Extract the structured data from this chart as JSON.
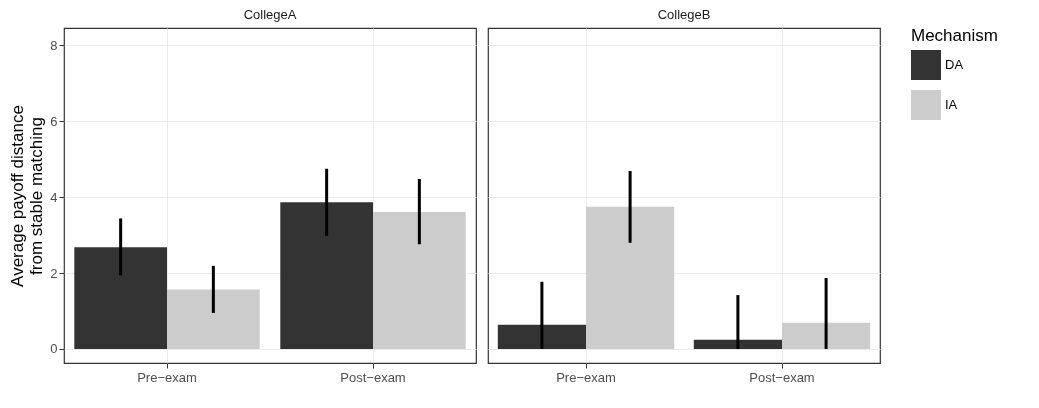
{
  "chart_data": [
    {
      "type": "bar",
      "title": "CollegeA",
      "ylabel": "Average payoff distance\nfrom stable matching",
      "categories": [
        "Pre−exam",
        "Post−exam"
      ],
      "ylim": [
        -0.37,
        8.46
      ],
      "yticks": [
        0,
        2,
        4,
        6,
        8
      ],
      "grid": true,
      "legend": "right",
      "legend_title": "Mechanism",
      "series": [
        {
          "name": "DA",
          "color": "#333333",
          "values": [
            2.68,
            3.87
          ],
          "errors": [
            [
              1.94,
              3.44
            ],
            [
              2.98,
              4.75
            ]
          ]
        },
        {
          "name": "IA",
          "color": "#cccccc",
          "values": [
            1.57,
            3.61
          ],
          "errors": [
            [
              0.95,
              2.19
            ],
            [
              2.76,
              4.48
            ]
          ]
        }
      ]
    },
    {
      "type": "bar",
      "title": "CollegeB",
      "categories": [
        "Pre−exam",
        "Post−exam"
      ],
      "ylim": [
        -0.37,
        8.46
      ],
      "yticks": [
        0,
        2,
        4,
        6,
        8
      ],
      "grid": true,
      "tick_labels": "x",
      "legend": "right",
      "series": [
        {
          "name": "DA",
          "color": "#333333",
          "values": [
            0.64,
            0.24
          ],
          "errors": [
            [
              0,
              1.77
            ],
            [
              0,
              1.42
            ]
          ]
        },
        {
          "name": "IA",
          "color": "#cccccc",
          "values": [
            3.75,
            0.69
          ],
          "errors": [
            [
              2.8,
              4.69
            ],
            [
              0,
              1.87
            ]
          ]
        }
      ]
    }
  ]
}
